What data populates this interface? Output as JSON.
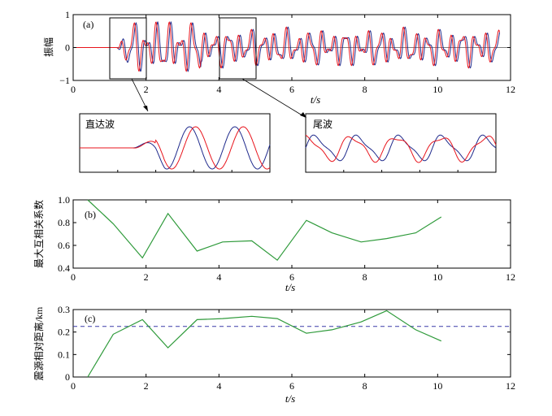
{
  "colors": {
    "red": "#e8141c",
    "blue": "#1f2a8c",
    "green": "#2e9a3a",
    "dashed": "#3a3aa8",
    "axis": "#000000"
  },
  "panel_a": {
    "label": "(a)",
    "ylabel": "振幅",
    "xlabel": "t/s",
    "xticks": [
      "0",
      "2",
      "4",
      "6",
      "8",
      "10",
      "12"
    ],
    "yticks": [
      "1",
      "0",
      "−1"
    ],
    "zoom1": "直达波",
    "zoom2": "尾波"
  },
  "panel_b": {
    "label": "(b)",
    "ylabel": "最大互相关系数",
    "xlabel": "t/s",
    "xticks": [
      "0",
      "2",
      "4",
      "6",
      "8",
      "10",
      "12"
    ],
    "yticks": [
      "1.0",
      "0.8",
      "0.6",
      "0.4"
    ]
  },
  "panel_c": {
    "label": "(c)",
    "ylabel": "震源相对距离/km",
    "xlabel": "t/s",
    "xticks": [
      "0",
      "2",
      "4",
      "6",
      "8",
      "10",
      "12"
    ],
    "yticks": [
      "0.3",
      "0.2",
      "0.1",
      "0"
    ]
  },
  "chart_data": [
    {
      "type": "line",
      "title": "",
      "xlabel": "t/s",
      "ylabel": "振幅",
      "xlim": [
        0,
        12
      ],
      "ylim": [
        -1,
        1
      ],
      "series": [],
      "note": "two seismic waveforms (red and blue); zoom boxes at 1-2 s and 4-5 s"
    },
    {
      "type": "line",
      "xlabel": "t/s",
      "ylabel": "最大互相关系数",
      "xlim": [
        0,
        12
      ],
      "ylim": [
        0.4,
        1.0
      ],
      "x": [
        0.4,
        1.1,
        1.9,
        2.6,
        3.4,
        4.1,
        4.9,
        5.6,
        6.4,
        7.1,
        7.9,
        8.6,
        9.4,
        10.1
      ],
      "series": [
        {
          "values": [
            1.0,
            0.79,
            0.49,
            0.88,
            0.55,
            0.63,
            0.64,
            0.47,
            0.82,
            0.71,
            0.63,
            0.66,
            0.71,
            0.85
          ]
        }
      ]
    },
    {
      "type": "line",
      "xlabel": "t/s",
      "ylabel": "震源相对距离/km",
      "xlim": [
        0,
        12
      ],
      "ylim": [
        0,
        0.3
      ],
      "x": [
        0.4,
        1.1,
        1.9,
        2.6,
        3.4,
        4.1,
        4.9,
        5.6,
        6.4,
        7.1,
        7.9,
        8.6,
        9.4,
        10.1
      ],
      "series": [
        {
          "values": [
            0.0,
            0.19,
            0.255,
            0.13,
            0.255,
            0.26,
            0.27,
            0.26,
            0.195,
            0.21,
            0.245,
            0.295,
            0.21,
            0.16
          ]
        }
      ],
      "reference_line": 0.225
    }
  ]
}
